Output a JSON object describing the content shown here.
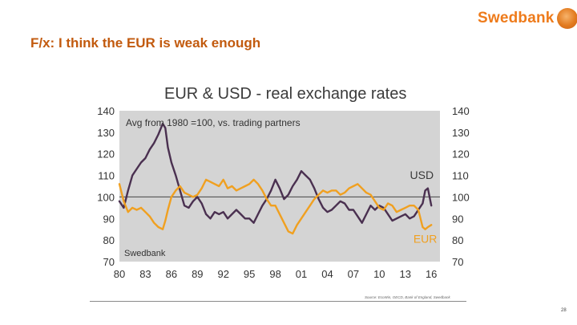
{
  "slide": {
    "title": "F/x: I think the EUR is weak enough",
    "logo_text": "Swedbank",
    "page_number": "28",
    "source": "Source: EcoWin, OECD, Bank of England, Swedbank"
  },
  "chart_data": {
    "type": "line",
    "title": "EUR & USD - real exchange rates",
    "subtitle": "Avg from 1980 =100, vs. trading partners",
    "watermark": "Swedbank",
    "x_tick_labels": [
      "80",
      "83",
      "86",
      "89",
      "92",
      "95",
      "98",
      "01",
      "04",
      "07",
      "10",
      "13",
      "16"
    ],
    "x_tick_years": [
      1980,
      1983,
      1986,
      1989,
      1992,
      1995,
      1998,
      2001,
      2004,
      2007,
      2010,
      2013,
      2016
    ],
    "xlim": [
      1980,
      2017
    ],
    "ylim": [
      70,
      140
    ],
    "y_ticks": [
      70,
      80,
      90,
      100,
      110,
      120,
      130,
      140
    ],
    "y_tick_labels": [
      "70",
      "80",
      "90",
      "100",
      "110",
      "120",
      "130",
      "140"
    ],
    "reference_line": 100,
    "background": "#d4d4d4",
    "series": [
      {
        "name": "USD",
        "color": "#4a3050",
        "x": [
          1980,
          1980.5,
          1981,
          1981.5,
          1982,
          1982.5,
          1983,
          1983.5,
          1984,
          1984.5,
          1985,
          1985.3,
          1985.6,
          1986,
          1986.5,
          1987,
          1987.5,
          1988,
          1988.5,
          1989,
          1989.5,
          1990,
          1990.5,
          1991,
          1991.5,
          1992,
          1992.5,
          1993,
          1993.5,
          1994,
          1994.5,
          1995,
          1995.5,
          1996,
          1996.5,
          1997,
          1997.5,
          1998,
          1998.5,
          1999,
          1999.5,
          2000,
          2000.5,
          2001,
          2001.5,
          2002,
          2002.5,
          2003,
          2003.5,
          2004,
          2004.5,
          2005,
          2005.5,
          2006,
          2006.5,
          2007,
          2007.5,
          2008,
          2008.5,
          2009,
          2009.5,
          2010,
          2010.5,
          2011,
          2011.5,
          2012,
          2012.5,
          2013,
          2013.5,
          2014,
          2014.5,
          2015,
          2015.3,
          2015.6,
          2016
        ],
        "values": [
          98,
          95,
          103,
          110,
          113,
          116,
          118,
          122,
          125,
          129,
          134,
          132,
          123,
          116,
          110,
          103,
          96,
          95,
          98,
          100,
          97,
          92,
          90,
          93,
          92,
          93,
          90,
          92,
          94,
          92,
          90,
          90,
          88,
          92,
          96,
          99,
          103,
          108,
          104,
          99,
          101,
          105,
          108,
          112,
          110,
          108,
          104,
          99,
          95,
          93,
          94,
          96,
          98,
          97,
          94,
          94,
          91,
          88,
          92,
          96,
          94,
          96,
          95,
          92,
          89,
          90,
          91,
          92,
          90,
          91,
          94,
          97,
          103,
          104,
          96
        ]
      },
      {
        "name": "EUR",
        "color": "#f0a020",
        "x": [
          1980,
          1980.5,
          1981,
          1981.5,
          1982,
          1982.5,
          1983,
          1983.5,
          1984,
          1984.5,
          1985,
          1985.3,
          1985.6,
          1986,
          1986.5,
          1987,
          1987.5,
          1988,
          1988.5,
          1989,
          1989.5,
          1990,
          1990.5,
          1991,
          1991.5,
          1992,
          1992.5,
          1993,
          1993.5,
          1994,
          1994.5,
          1995,
          1995.5,
          1996,
          1996.5,
          1997,
          1997.5,
          1998,
          1998.5,
          1999,
          1999.5,
          2000,
          2000.5,
          2001,
          2001.5,
          2002,
          2002.5,
          2003,
          2003.5,
          2004,
          2004.5,
          2005,
          2005.5,
          2006,
          2006.5,
          2007,
          2007.5,
          2008,
          2008.5,
          2009,
          2009.5,
          2010,
          2010.5,
          2011,
          2011.5,
          2012,
          2012.5,
          2013,
          2013.5,
          2014,
          2014.5,
          2015,
          2015.3,
          2015.6,
          2016
        ],
        "values": [
          106,
          98,
          93,
          95,
          94,
          95,
          93,
          91,
          88,
          86,
          85,
          89,
          94,
          100,
          103,
          105,
          102,
          101,
          100,
          101,
          104,
          108,
          107,
          106,
          105,
          108,
          104,
          105,
          103,
          104,
          105,
          106,
          108,
          106,
          103,
          99,
          96,
          96,
          92,
          88,
          84,
          83,
          87,
          90,
          93,
          96,
          99,
          101,
          103,
          102,
          103,
          103,
          101,
          102,
          104,
          105,
          106,
          104,
          102,
          101,
          98,
          95,
          94,
          97,
          96,
          93,
          94,
          95,
          96,
          96,
          94,
          86,
          85,
          86,
          87
        ]
      }
    ],
    "line_labels": [
      {
        "text": "USD",
        "series": "USD"
      },
      {
        "text": "EUR",
        "series": "EUR"
      }
    ]
  }
}
